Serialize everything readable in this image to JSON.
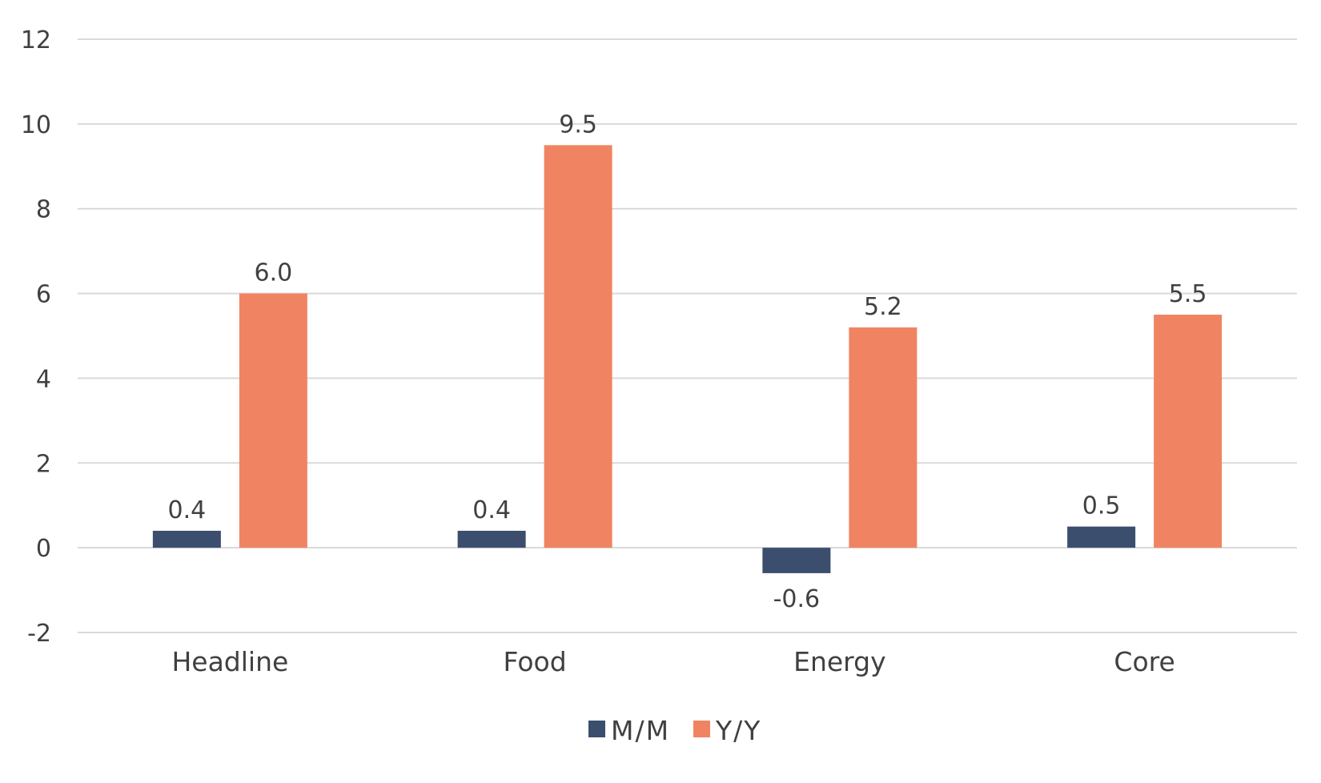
{
  "chart_data": {
    "type": "bar",
    "title": "",
    "xlabel": "",
    "ylabel": "",
    "categories": [
      "Headline",
      "Food",
      "Energy",
      "Core"
    ],
    "series": [
      {
        "name": "M/M",
        "color": "#3b4e6e",
        "values": [
          0.4,
          0.4,
          -0.6,
          0.5
        ],
        "labels": [
          "0.4",
          "0.4",
          "-0.6",
          "0.5"
        ]
      },
      {
        "name": "Y/Y",
        "color": "#f08462",
        "values": [
          6.0,
          9.5,
          5.2,
          5.5
        ],
        "labels": [
          "6.0",
          "9.5",
          "5.2",
          "5.5"
        ]
      }
    ],
    "ylim": [
      -2,
      12
    ],
    "yticks": [
      -2,
      0,
      2,
      4,
      6,
      8,
      10,
      12
    ],
    "ytick_labels": [
      "-2",
      "0",
      "2",
      "4",
      "6",
      "8",
      "10",
      "12"
    ],
    "grid": true,
    "legend_position": "bottom-center"
  },
  "colors": {
    "grid": "#d9d9d9",
    "text": "#404040"
  }
}
